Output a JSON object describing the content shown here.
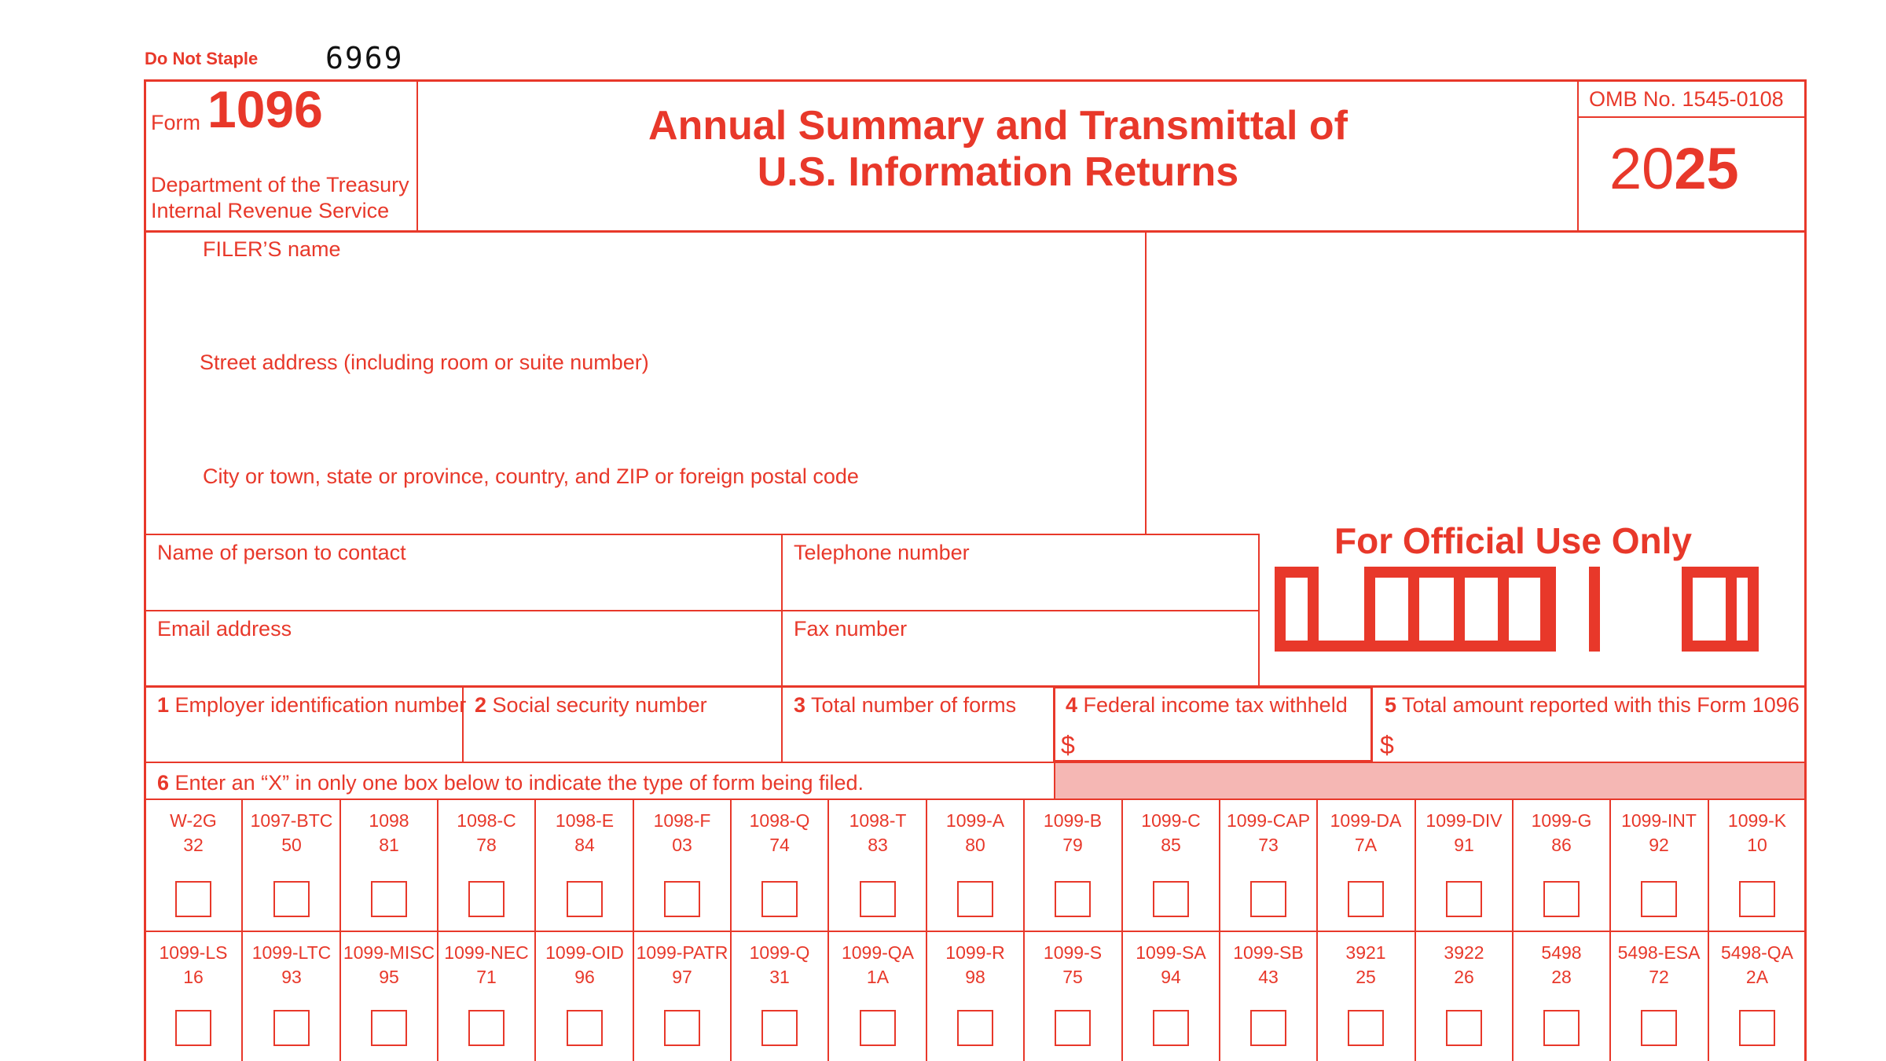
{
  "header": {
    "do_not_staple": "Do Not Staple",
    "handwritten_code": "6969",
    "form_word": "Form",
    "form_number": "1096",
    "department": "Department of the Treasury",
    "agency": "Internal Revenue Service",
    "title_line1": "Annual Summary and Transmittal of",
    "title_line2": "U.S. Information Returns",
    "omb": "OMB No. 1545-0108",
    "year_light": "20",
    "year_bold": "25"
  },
  "filer": {
    "name_label": "FILER’S name",
    "street_label": "Street address (including room or suite number)",
    "city_label": "City or town, state or province, country, and ZIP or foreign postal code"
  },
  "contact": {
    "contact_label": "Name of person to contact",
    "phone_label": "Telephone number",
    "email_label": "Email address",
    "fax_label": "Fax number"
  },
  "official_use": {
    "label": "For Official Use Only"
  },
  "boxes": [
    {
      "num": "1",
      "label": "Employer identification number"
    },
    {
      "num": "2",
      "label": "Social security number"
    },
    {
      "num": "3",
      "label": "Total number of forms"
    },
    {
      "num": "4",
      "label": "Federal income tax withheld",
      "prefix": "$"
    },
    {
      "num": "5",
      "label": "Total amount reported with this Form 1096",
      "prefix": "$"
    }
  ],
  "box6": {
    "num": "6",
    "label": "Enter an “X” in only one box below to indicate the type of form being filed."
  },
  "form_types_row1": [
    {
      "name": "W-2G",
      "code": "32"
    },
    {
      "name": "1097-BTC",
      "code": "50"
    },
    {
      "name": "1098",
      "code": "81"
    },
    {
      "name": "1098-C",
      "code": "78"
    },
    {
      "name": "1098-E",
      "code": "84"
    },
    {
      "name": "1098-F",
      "code": "03"
    },
    {
      "name": "1098-Q",
      "code": "74"
    },
    {
      "name": "1098-T",
      "code": "83"
    },
    {
      "name": "1099-A",
      "code": "80"
    },
    {
      "name": "1099-B",
      "code": "79"
    },
    {
      "name": "1099-C",
      "code": "85"
    },
    {
      "name": "1099-CAP",
      "code": "73"
    },
    {
      "name": "1099-DA",
      "code": "7A"
    },
    {
      "name": "1099-DIV",
      "code": "91"
    },
    {
      "name": "1099-G",
      "code": "86"
    },
    {
      "name": "1099-INT",
      "code": "92"
    },
    {
      "name": "1099-K",
      "code": "10"
    }
  ],
  "form_types_row2": [
    {
      "name": "1099-LS",
      "code": "16"
    },
    {
      "name": "1099-LTC",
      "code": "93"
    },
    {
      "name": "1099-MISC",
      "code": "95"
    },
    {
      "name": "1099-NEC",
      "code": "71"
    },
    {
      "name": "1099-OID",
      "code": "96"
    },
    {
      "name": "1099-PATR",
      "code": "97"
    },
    {
      "name": "1099-Q",
      "code": "31"
    },
    {
      "name": "1099-QA",
      "code": "1A"
    },
    {
      "name": "1099-R",
      "code": "98"
    },
    {
      "name": "1099-S",
      "code": "75"
    },
    {
      "name": "1099-SA",
      "code": "94"
    },
    {
      "name": "1099-SB",
      "code": "43"
    },
    {
      "name": "3921",
      "code": "25"
    },
    {
      "name": "3922",
      "code": "26"
    },
    {
      "name": "5498",
      "code": "28"
    },
    {
      "name": "5498-ESA",
      "code": "72"
    },
    {
      "name": "5498-QA",
      "code": "2A"
    }
  ],
  "colors": {
    "form_red": "#e8382a",
    "shade_pink": "#f5b7b4"
  }
}
